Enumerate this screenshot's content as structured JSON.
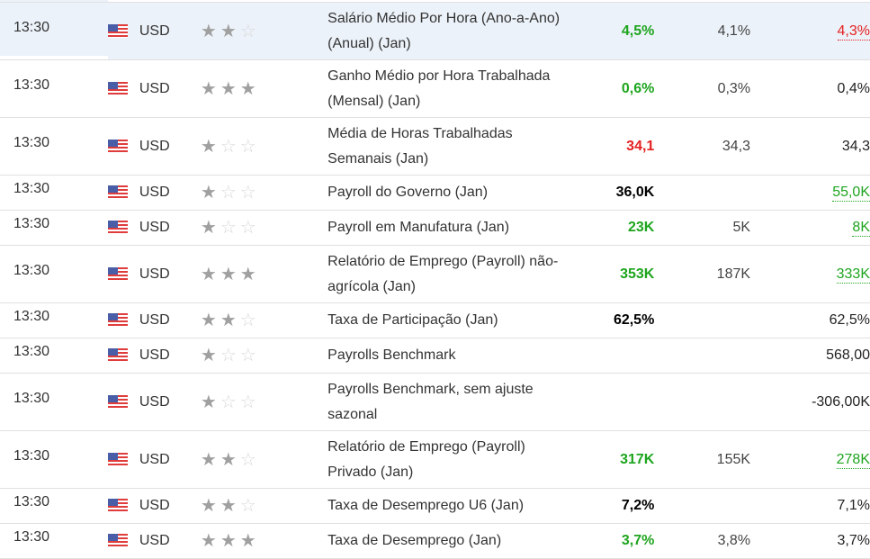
{
  "colors": {
    "positive": "#1ea51e",
    "negative": "#e52020",
    "highlight_row": "#ecf2f9"
  },
  "rows": [
    {
      "time": "13:30",
      "currency": "USD",
      "importance": 2,
      "event": "Salário Médio Por Hora (Ano-a-Ano) (Anual) (Jan)",
      "actual": "4,5%",
      "actual_color": "green",
      "forecast": "4,1%",
      "previous": "4,3%",
      "previous_color": "red",
      "lines": 2,
      "highlight": true
    },
    {
      "time": "13:30",
      "currency": "USD",
      "importance": 3,
      "event": "Ganho Médio por Hora Trabalhada (Mensal) (Jan)",
      "actual": "0,6%",
      "actual_color": "green",
      "forecast": "0,3%",
      "previous": "0,4%",
      "previous_color": "",
      "lines": 2
    },
    {
      "time": "13:30",
      "currency": "USD",
      "importance": 1,
      "event": "Média de Horas Trabalhadas Semanais (Jan)",
      "actual": "34,1",
      "actual_color": "red",
      "forecast": "34,3",
      "previous": "34,3",
      "previous_color": "",
      "lines": 2
    },
    {
      "time": "13:30",
      "currency": "USD",
      "importance": 1,
      "event": "Payroll do Governo (Jan)",
      "actual": "36,0K",
      "actual_color": "",
      "forecast": "",
      "previous": "55,0K",
      "previous_color": "green",
      "lines": 1
    },
    {
      "time": "13:30",
      "currency": "USD",
      "importance": 1,
      "event": "Payroll em Manufatura (Jan)",
      "actual": "23K",
      "actual_color": "green",
      "forecast": "5K",
      "previous": "8K",
      "previous_color": "green",
      "lines": 1
    },
    {
      "time": "13:30",
      "currency": "USD",
      "importance": 3,
      "event": "Relatório de Emprego (Payroll) não-agrícola (Jan)",
      "actual": "353K",
      "actual_color": "green",
      "forecast": "187K",
      "previous": "333K",
      "previous_color": "green",
      "lines": 2
    },
    {
      "time": "13:30",
      "currency": "USD",
      "importance": 2,
      "event": "Taxa de Participação (Jan)",
      "actual": "62,5%",
      "actual_color": "",
      "forecast": "",
      "previous": "62,5%",
      "previous_color": "",
      "lines": 1
    },
    {
      "time": "13:30",
      "currency": "USD",
      "importance": 1,
      "event": "Payrolls Benchmark",
      "actual": "",
      "actual_color": "",
      "forecast": "",
      "previous": "568,00",
      "previous_color": "",
      "lines": 1
    },
    {
      "time": "13:30",
      "currency": "USD",
      "importance": 1,
      "event": "Payrolls Benchmark, sem ajuste sazonal",
      "actual": "",
      "actual_color": "",
      "forecast": "",
      "previous": "-306,00K",
      "previous_color": "",
      "lines": 2
    },
    {
      "time": "13:30",
      "currency": "USD",
      "importance": 2,
      "event": "Relatório de Emprego (Payroll) Privado (Jan)",
      "actual": "317K",
      "actual_color": "green",
      "forecast": "155K",
      "previous": "278K",
      "previous_color": "green",
      "lines": 2
    },
    {
      "time": "13:30",
      "currency": "USD",
      "importance": 2,
      "event": "Taxa de Desemprego U6 (Jan)",
      "actual": "7,2%",
      "actual_color": "",
      "forecast": "",
      "previous": "7,1%",
      "previous_color": "",
      "lines": 1
    },
    {
      "time": "13:30",
      "currency": "USD",
      "importance": 3,
      "event": "Taxa de Desemprego (Jan)",
      "actual": "3,7%",
      "actual_color": "green",
      "forecast": "3,8%",
      "previous": "3,7%",
      "previous_color": "",
      "lines": 1
    }
  ]
}
